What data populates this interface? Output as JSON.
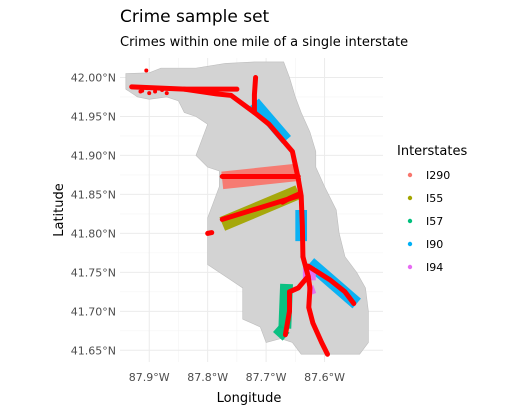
{
  "chart_data": {
    "type": "scatter",
    "title": "Crime sample set",
    "subtitle": "Crimes within one mile of a single interstate",
    "xlabel": "Longitude",
    "ylabel": "Latitude",
    "xlim": [
      -87.95,
      -87.5
    ],
    "ylim": [
      41.635,
      42.025
    ],
    "x_ticks": [
      {
        "value": -87.9,
        "label": "87.9°W"
      },
      {
        "value": -87.8,
        "label": "87.8°W"
      },
      {
        "value": -87.7,
        "label": "87.7°W"
      },
      {
        "value": -87.6,
        "label": "87.6°W"
      }
    ],
    "y_ticks": [
      {
        "value": 42.0,
        "label": "42.00°N"
      },
      {
        "value": 41.95,
        "label": "41.95°N"
      },
      {
        "value": 41.9,
        "label": "41.90°N"
      },
      {
        "value": 41.85,
        "label": "41.85°N"
      },
      {
        "value": 41.8,
        "label": "41.80°N"
      },
      {
        "value": 41.75,
        "label": "41.75°N"
      },
      {
        "value": 41.7,
        "label": "41.70°N"
      },
      {
        "value": 41.65,
        "label": "41.65°N"
      }
    ],
    "grid": true,
    "legend": {
      "title": "Interstates",
      "position": "right"
    },
    "series": [
      {
        "name": "I290",
        "color": "#F8766D",
        "bands": [
          {
            "lon": [
              -87.775,
              -87.65
            ],
            "lat": [
              41.868,
              41.878
            ],
            "width_deg": 0.03
          }
        ]
      },
      {
        "name": "I55",
        "color": "#A3A500",
        "bands": [
          {
            "lon": [
              -87.775,
              -87.645
            ],
            "lat": [
              41.812,
              41.853
            ],
            "width_deg": 0.025
          }
        ]
      },
      {
        "name": "I57",
        "color": "#00BF7D",
        "bands": [
          {
            "lon": [
              -87.665,
              -87.668
            ],
            "lat": [
              41.735,
              41.678
            ],
            "width_deg": 0.022
          },
          {
            "lon": [
              -87.668,
              -87.68
            ],
            "lat": [
              41.678,
              41.668
            ],
            "width_deg": 0.022
          }
        ]
      },
      {
        "name": "I90",
        "color": "#00B0F6",
        "bands": [
          {
            "lon": [
              -87.72,
              -87.665
            ],
            "lat": [
              41.968,
              41.92
            ],
            "width_deg": 0.02
          },
          {
            "lon": [
              -87.64,
              -87.64
            ],
            "lat": [
              41.83,
              41.79
            ],
            "width_deg": 0.02
          },
          {
            "lon": [
              -87.625,
              -87.545
            ],
            "lat": [
              41.762,
              41.71
            ],
            "width_deg": 0.022
          }
        ]
      },
      {
        "name": "I94",
        "color": "#E76BF3",
        "bands": [
          {
            "lon": [
              -87.637,
              -87.615
            ],
            "lat": [
              41.748,
              41.748
            ],
            "width_deg": 0.022
          },
          {
            "lon": [
              -87.625,
              -87.62
            ],
            "lat": [
              41.732,
              41.722
            ],
            "width_deg": 0.012
          }
        ]
      }
    ],
    "highway_points": {
      "color": "#FF0000",
      "lines": [
        {
          "lon": [
            -87.93,
            -87.84,
            -87.75
          ],
          "lat": [
            41.988,
            41.985,
            41.985
          ]
        },
        {
          "lon": [
            -87.84,
            -87.785,
            -87.76,
            -87.72,
            -87.695,
            -87.655,
            -87.645
          ],
          "lat": [
            41.985,
            41.979,
            41.977,
            41.955,
            41.94,
            41.905,
            41.87
          ]
        },
        {
          "lon": [
            -87.72,
            -87.72,
            -87.718
          ],
          "lat": [
            41.955,
            41.978,
            42.0
          ]
        },
        {
          "lon": [
            -87.775,
            -87.645
          ],
          "lat": [
            41.873,
            41.873
          ]
        },
        {
          "lon": [
            -87.645,
            -87.64,
            -87.638,
            -87.637
          ],
          "lat": [
            41.87,
            41.848,
            41.81,
            41.77
          ]
        },
        {
          "lon": [
            -87.645,
            -87.775
          ],
          "lat": [
            41.848,
            41.818
          ]
        },
        {
          "lon": [
            -87.637,
            -87.628,
            -87.625,
            -87.627,
            -87.62,
            -87.605,
            -87.595
          ],
          "lat": [
            41.77,
            41.745,
            41.73,
            41.705,
            41.685,
            41.66,
            41.645
          ]
        },
        {
          "lon": [
            -87.628,
            -87.59,
            -87.565,
            -87.55
          ],
          "lat": [
            41.758,
            41.74,
            41.725,
            41.71
          ]
        },
        {
          "lon": [
            -87.628,
            -87.645,
            -87.66,
            -87.66,
            -87.667
          ],
          "lat": [
            41.745,
            41.73,
            41.725,
            41.7,
            41.67
          ]
        },
        {
          "lon": [
            -87.645,
            -87.66,
            -87.672
          ],
          "lat": [
            41.85,
            41.845,
            41.84
          ]
        },
        {
          "lon": [
            -87.8,
            -87.793
          ],
          "lat": [
            41.8,
            41.801
          ]
        }
      ],
      "scatter": [
        {
          "lon": -87.905,
          "lat": 42.009
        },
        {
          "lon": -87.912,
          "lat": 41.983
        },
        {
          "lon": -87.915,
          "lat": 41.982
        },
        {
          "lon": -87.9,
          "lat": 41.98
        },
        {
          "lon": -87.89,
          "lat": 41.982
        },
        {
          "lon": -87.878,
          "lat": 41.984
        },
        {
          "lon": -87.87,
          "lat": 41.98
        },
        {
          "lon": -87.862,
          "lat": 41.986
        }
      ]
    }
  }
}
